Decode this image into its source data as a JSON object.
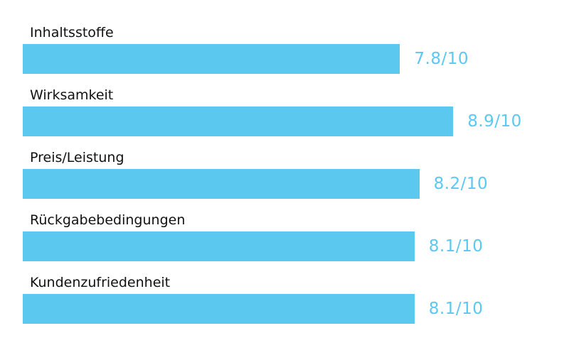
{
  "chart_data": {
    "type": "bar",
    "orientation": "horizontal",
    "categories": [
      "Inhaltsstoffe",
      "Wirksamkeit",
      "Preis/Leistung",
      "Rückgabebedingungen",
      "Kundenzufriedenheit"
    ],
    "values": [
      7.8,
      8.9,
      8.2,
      8.1,
      8.1
    ],
    "value_labels": [
      "7.8/10",
      "8.9/10",
      "8.2/10",
      "8.1/10",
      "8.1/10"
    ],
    "title": "",
    "xlabel": "",
    "ylabel": "",
    "xlim": [
      0,
      10
    ],
    "grid": false,
    "legend": "none",
    "colors": {
      "bar": "#5bc8f0",
      "value_text": "#5bc8f0",
      "label_text": "#111111"
    }
  }
}
